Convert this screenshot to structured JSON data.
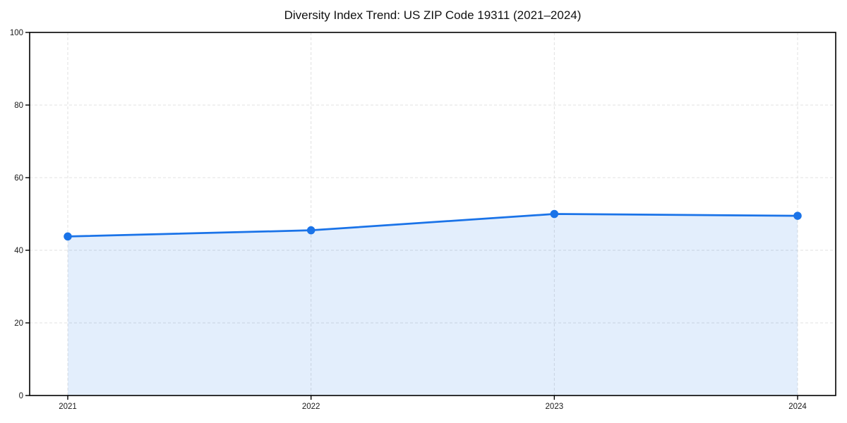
{
  "chart_data": {
    "type": "area",
    "title": "Diversity Index Trend: US ZIP Code 19311 (2021–2024)",
    "xlabel": "",
    "ylabel": "",
    "categories": [
      "2021",
      "2022",
      "2023",
      "2024"
    ],
    "series": [
      {
        "name": "Diversity Index",
        "values": [
          43.8,
          45.5,
          50.0,
          49.5
        ]
      }
    ],
    "ylim": [
      0,
      100
    ],
    "yticks": [
      0,
      20,
      40,
      60,
      80,
      100
    ],
    "grid": true,
    "grid_style": "dashed",
    "legend": "none",
    "colors": {
      "line": "#1a73e8",
      "fill": "#1a73e8",
      "grid": "#e0e0e0",
      "spine": "#000000",
      "tick_label": "#1a1a1a",
      "background": "#ffffff"
    },
    "fill_opacity": 0.12,
    "marker": "circle"
  }
}
